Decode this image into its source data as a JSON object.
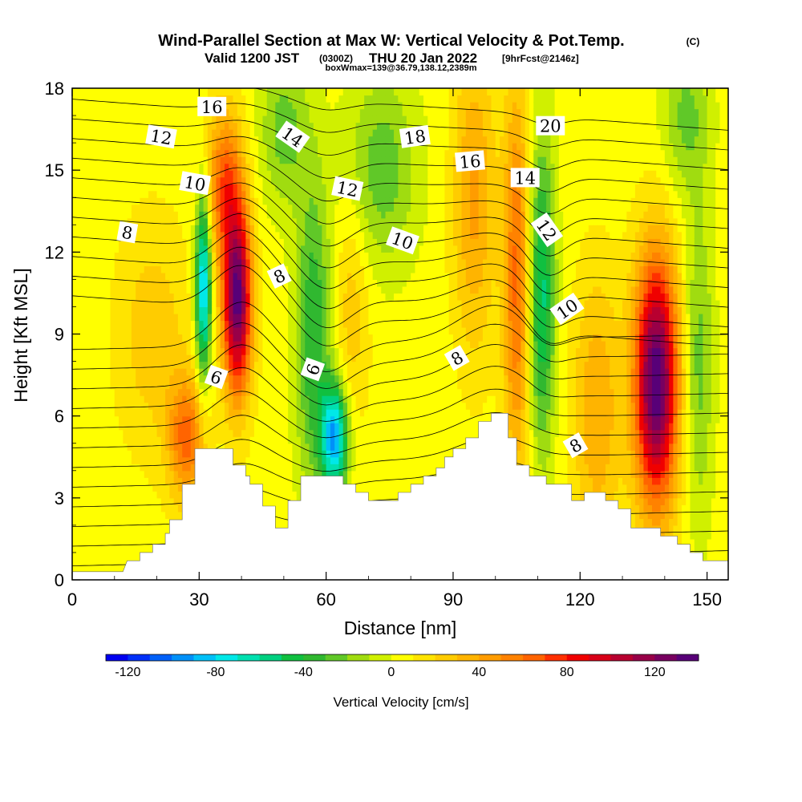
{
  "chart_data": {
    "type": "heatmap",
    "title": "Wind-Parallel Section at Max W: Vertical Velocity & Pot.Temp.",
    "title_mark": "(C)",
    "subtitle": {
      "valid": "Valid 1200 JST",
      "utc": "(0300Z)",
      "date": "THU 20 Jan 2022",
      "fcst": "[9hrFcst@2146z]"
    },
    "box_note": "boxWmax=139@36.79,138.12,2389m",
    "xlabel": "Distance [nm]",
    "ylabel": "Height [Kft MSL]",
    "xlim": [
      0,
      155
    ],
    "ylim": [
      0,
      18
    ],
    "x_ticks": [
      0,
      30,
      60,
      90,
      120,
      150
    ],
    "y_ticks": [
      0,
      3,
      6,
      9,
      12,
      15,
      18
    ],
    "grid": false,
    "colorbar": {
      "label": "Vertical Velocity [cm/s]",
      "range": [
        -130,
        140
      ],
      "ticks": [
        -120,
        -80,
        -40,
        0,
        40,
        80,
        120
      ],
      "colors": [
        "#0000f0",
        "#0030f8",
        "#0060f8",
        "#0090f8",
        "#00c0f8",
        "#00e8e8",
        "#00e0b0",
        "#00d080",
        "#10c040",
        "#30b830",
        "#60c828",
        "#a0dc10",
        "#d0f000",
        "#ffff00",
        "#ffe400",
        "#ffcc00",
        "#ffb400",
        "#ff9c00",
        "#ff8200",
        "#ff6400",
        "#ff3000",
        "#f00000",
        "#d80018",
        "#b80030",
        "#980048",
        "#780060",
        "#580078"
      ]
    },
    "vertical_velocity_cores": [
      {
        "x": 39,
        "y": 10.2,
        "w": 128,
        "sx": 2.4,
        "sy": 2.4
      },
      {
        "x": 36,
        "y": 14.5,
        "w": 60,
        "sx": 3,
        "sy": 2
      },
      {
        "x": 31,
        "y": 10.8,
        "w": -90,
        "sx": 1.3,
        "sy": 2.4
      },
      {
        "x": 27,
        "y": 5.2,
        "w": 58,
        "sx": 3,
        "sy": 1.6
      },
      {
        "x": 19,
        "y": 9,
        "w": 22,
        "sx": 6,
        "sy": 3
      },
      {
        "x": 50,
        "y": 16.5,
        "w": -30,
        "sx": 4,
        "sy": 2
      },
      {
        "x": 57,
        "y": 9,
        "w": -45,
        "sx": 3,
        "sy": 4
      },
      {
        "x": 62,
        "y": 5.2,
        "w": -95,
        "sx": 2.2,
        "sy": 1.4
      },
      {
        "x": 66,
        "y": 10,
        "w": 22,
        "sx": 3,
        "sy": 3
      },
      {
        "x": 73,
        "y": 15,
        "w": -32,
        "sx": 6,
        "sy": 2.5
      },
      {
        "x": 95,
        "y": 14,
        "w": 38,
        "sx": 3.5,
        "sy": 4
      },
      {
        "x": 105,
        "y": 11,
        "w": 58,
        "sx": 2.2,
        "sy": 5
      },
      {
        "x": 111,
        "y": 10.5,
        "w": -58,
        "sx": 2.2,
        "sy": 4
      },
      {
        "x": 124,
        "y": 6.2,
        "w": 35,
        "sx": 4,
        "sy": 3.5
      },
      {
        "x": 138,
        "y": 7.3,
        "w": 136,
        "sx": 3.6,
        "sy": 3.2
      },
      {
        "x": 148,
        "y": 8,
        "w": -30,
        "sx": 2.5,
        "sy": 4
      },
      {
        "x": 145,
        "y": 17,
        "w": -28,
        "sx": 4,
        "sy": 2
      }
    ],
    "terrain": [
      [
        0,
        0.3
      ],
      [
        12,
        0.3
      ],
      [
        13,
        0.7
      ],
      [
        16,
        0.7
      ],
      [
        16,
        1
      ],
      [
        19,
        1
      ],
      [
        19,
        1.3
      ],
      [
        22,
        1.3
      ],
      [
        22,
        1.7
      ],
      [
        23,
        1.7
      ],
      [
        23,
        2.2
      ],
      [
        26,
        2.2
      ],
      [
        26,
        3.5
      ],
      [
        29,
        3.5
      ],
      [
        29,
        4.8
      ],
      [
        38,
        4.8
      ],
      [
        38,
        4.2
      ],
      [
        41,
        4.2
      ],
      [
        41,
        3.8
      ],
      [
        42,
        3.8
      ],
      [
        42,
        3.5
      ],
      [
        45,
        3.5
      ],
      [
        45,
        2.7
      ],
      [
        48,
        2.7
      ],
      [
        48,
        1.9
      ],
      [
        51,
        1.9
      ],
      [
        51,
        2.9
      ],
      [
        54,
        2.9
      ],
      [
        54,
        3.8
      ],
      [
        64,
        3.8
      ],
      [
        64,
        3.5
      ],
      [
        67,
        3.5
      ],
      [
        67,
        3.2
      ],
      [
        70,
        3.2
      ],
      [
        70,
        2.9
      ],
      [
        77,
        2.9
      ],
      [
        77,
        3.2
      ],
      [
        80,
        3.2
      ],
      [
        80,
        3.5
      ],
      [
        83,
        3.5
      ],
      [
        83,
        3.8
      ],
      [
        86,
        3.8
      ],
      [
        86,
        4.1
      ],
      [
        88,
        4.1
      ],
      [
        88,
        4.5
      ],
      [
        90,
        4.5
      ],
      [
        90,
        4.8
      ],
      [
        93,
        4.8
      ],
      [
        93,
        5.2
      ],
      [
        96,
        5.2
      ],
      [
        96,
        5.8
      ],
      [
        99,
        5.8
      ],
      [
        99,
        6.1
      ],
      [
        103,
        6.1
      ],
      [
        103,
        5.2
      ],
      [
        105,
        5.2
      ],
      [
        105,
        4.2
      ],
      [
        108,
        4.2
      ],
      [
        108,
        3.8
      ],
      [
        112,
        3.8
      ],
      [
        112,
        3.5
      ],
      [
        118,
        3.5
      ],
      [
        118,
        2.9
      ],
      [
        121,
        2.9
      ],
      [
        121,
        3.2
      ],
      [
        126,
        3.2
      ],
      [
        126,
        2.9
      ],
      [
        129,
        2.9
      ],
      [
        129,
        2.6
      ],
      [
        132,
        2.6
      ],
      [
        132,
        1.9
      ],
      [
        139,
        1.9
      ],
      [
        139,
        1.6
      ],
      [
        143,
        1.6
      ],
      [
        143,
        1.3
      ],
      [
        146,
        1.3
      ],
      [
        146,
        1
      ],
      [
        149,
        1
      ],
      [
        149,
        0.7
      ],
      [
        155,
        0.7
      ]
    ],
    "theta_contour_labels": [
      {
        "text": "16",
        "x": 33,
        "y": 17.3,
        "rot": 0
      },
      {
        "text": "12",
        "x": 21,
        "y": 16.2,
        "rot": 10
      },
      {
        "text": "14",
        "x": 52,
        "y": 16.2,
        "rot": 35
      },
      {
        "text": "18",
        "x": 81,
        "y": 16.2,
        "rot": -8
      },
      {
        "text": "20",
        "x": 113,
        "y": 16.6,
        "rot": 0
      },
      {
        "text": "16",
        "x": 94,
        "y": 15.3,
        "rot": -5
      },
      {
        "text": "10",
        "x": 29,
        "y": 14.5,
        "rot": 10
      },
      {
        "text": "12",
        "x": 65,
        "y": 14.3,
        "rot": 12
      },
      {
        "text": "14",
        "x": 107,
        "y": 14.7,
        "rot": 0
      },
      {
        "text": "12",
        "x": 112,
        "y": 12.8,
        "rot": 55
      },
      {
        "text": "8",
        "x": 13,
        "y": 12.7,
        "rot": 10
      },
      {
        "text": "10",
        "x": 78,
        "y": 12.4,
        "rot": 20
      },
      {
        "text": "8",
        "x": 49,
        "y": 11.1,
        "rot": -25
      },
      {
        "text": "10",
        "x": 117,
        "y": 9.9,
        "rot": -35
      },
      {
        "text": "6",
        "x": 34,
        "y": 7.4,
        "rot": 20
      },
      {
        "text": "6",
        "x": 57,
        "y": 7.7,
        "rot": -70
      },
      {
        "text": "8",
        "x": 91,
        "y": 8.1,
        "rot": -30
      },
      {
        "text": "8",
        "x": 119,
        "y": 4.9,
        "rot": -30
      }
    ]
  }
}
